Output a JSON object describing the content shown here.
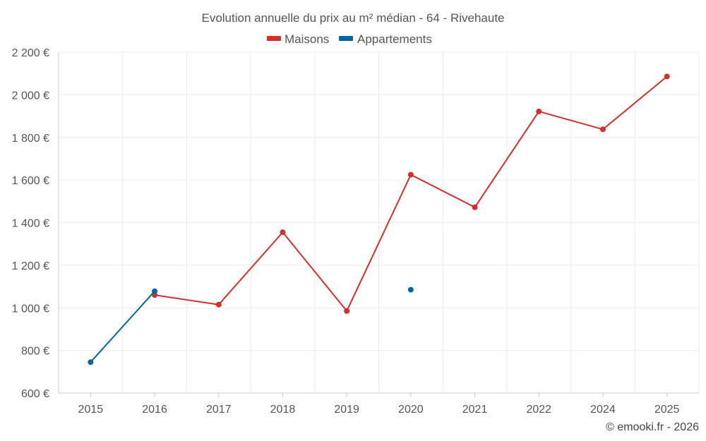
{
  "chart_data": {
    "type": "line",
    "title": "Evolution annuelle du prix au m² médian - 64 - Rivehaute",
    "categories": [
      "2015",
      "2016",
      "2017",
      "2018",
      "2019",
      "2020",
      "2021",
      "2022",
      "2024",
      "2025"
    ],
    "series": [
      {
        "name": "Maisons",
        "color": "#d32f2f",
        "values": [
          null,
          1060,
          1015,
          1355,
          985,
          1625,
          1472,
          1922,
          1838,
          2086
        ]
      },
      {
        "name": "Appartements",
        "color": "#04669b",
        "values": [
          745,
          1078,
          null,
          null,
          null,
          1085,
          null,
          null,
          null,
          null
        ]
      }
    ],
    "ylim": [
      600,
      2200
    ],
    "yticks": [
      600,
      800,
      1000,
      1200,
      1400,
      1600,
      1800,
      2000,
      2200
    ],
    "ytick_labels": [
      "600 €",
      "800 €",
      "1 000 €",
      "1 200 €",
      "1 400 €",
      "1 600 €",
      "1 800 €",
      "2 000 €",
      "2 200 €"
    ],
    "xlabel": "",
    "ylabel": "",
    "grid": true,
    "legend_position": "top-center"
  },
  "credit": "© emooki.fr - 2026"
}
